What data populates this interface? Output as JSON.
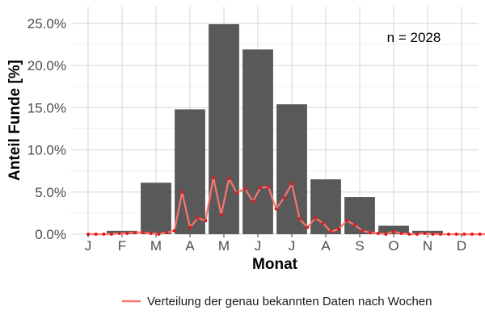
{
  "chart_data": {
    "type": "bar",
    "categories": [
      "J",
      "F",
      "M",
      "A",
      "M",
      "J",
      "J",
      "A",
      "S",
      "O",
      "N",
      "D"
    ],
    "series": [
      {
        "type": "bar",
        "values": [
          0.0,
          0.4,
          6.1,
          14.8,
          24.9,
          21.9,
          15.4,
          6.5,
          4.4,
          1.0,
          0.4,
          0.0
        ],
        "color": "#595959"
      },
      {
        "type": "line",
        "name": "Verteilung der genau bekannten Daten nach Wochen",
        "x": [
          0.0,
          0.23,
          0.46,
          0.69,
          0.92,
          1.15,
          1.38,
          1.62,
          1.85,
          2.08,
          2.31,
          2.54,
          2.77,
          3.0,
          3.23,
          3.46,
          3.69,
          3.92,
          4.15,
          4.38,
          4.62,
          4.85,
          5.08,
          5.31,
          5.54,
          5.77,
          6.0,
          6.23,
          6.46,
          6.69,
          6.92,
          7.15,
          7.38,
          7.62,
          7.85,
          8.08,
          8.31,
          8.54,
          8.77,
          9.0,
          9.23,
          9.46,
          9.69,
          9.92,
          10.15,
          10.38,
          10.62,
          10.85,
          11.08,
          11.31,
          11.54,
          11.77,
          12.0
        ],
        "values": [
          0.0,
          0.0,
          0.0,
          0.0,
          0.1,
          0.1,
          0.2,
          0.2,
          0.1,
          0.0,
          0.2,
          0.4,
          5.0,
          0.8,
          1.9,
          1.6,
          6.7,
          2.3,
          6.6,
          4.9,
          5.4,
          3.9,
          5.5,
          5.6,
          3.0,
          4.3,
          6.0,
          1.8,
          0.8,
          1.9,
          1.3,
          0.3,
          0.6,
          1.6,
          1.1,
          0.4,
          0.2,
          0.1,
          0.0,
          0.3,
          0.1,
          0.0,
          0.0,
          0.1,
          0.0,
          0.0,
          0.0,
          0.0,
          0.0,
          0.0,
          0.0,
          0.0,
          0.0
        ],
        "color": "#f8766d",
        "point_color": "#e41a1c"
      }
    ],
    "xlabel": "Monat",
    "ylabel": "Anteil Funde [%]",
    "ylim": [
      0,
      27
    ],
    "yticks": [
      "0.0%",
      "5.0%",
      "10.0%",
      "15.0%",
      "20.0%",
      "25.0%"
    ],
    "ytick_values": [
      0,
      5,
      10,
      15,
      20,
      25
    ],
    "annotation": "n = 2028",
    "grid": true,
    "legend_position": "bottom"
  }
}
